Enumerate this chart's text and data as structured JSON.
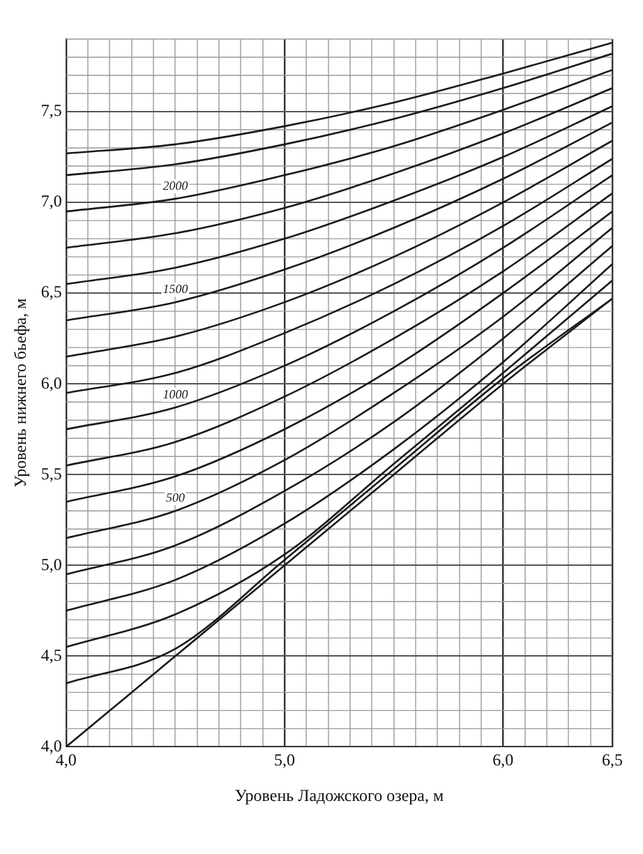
{
  "chart_data": {
    "type": "line",
    "xlabel": "Уровень Ладожского озера, м",
    "ylabel": "Уровень нижнего бьефа, м",
    "x": [
      4.0,
      4.5,
      5.0,
      5.5,
      6.0,
      6.5
    ],
    "xlim": [
      4.0,
      6.5
    ],
    "ylim": [
      4.0,
      7.9
    ],
    "xticks": [
      {
        "value": 4.0,
        "label": "4,0"
      },
      {
        "value": 4.1,
        "label": null
      },
      {
        "value": 4.2,
        "label": null
      },
      {
        "value": 4.3,
        "label": null
      },
      {
        "value": 4.4,
        "label": null
      },
      {
        "value": 4.5,
        "label": null
      },
      {
        "value": 4.6,
        "label": null
      },
      {
        "value": 4.7,
        "label": null
      },
      {
        "value": 4.8,
        "label": null
      },
      {
        "value": 4.9,
        "label": null
      },
      {
        "value": 5.0,
        "label": "5,0"
      },
      {
        "value": 5.1,
        "label": null
      },
      {
        "value": 5.2,
        "label": null
      },
      {
        "value": 5.3,
        "label": null
      },
      {
        "value": 5.4,
        "label": null
      },
      {
        "value": 5.5,
        "label": null
      },
      {
        "value": 5.6,
        "label": null
      },
      {
        "value": 5.7,
        "label": null
      },
      {
        "value": 5.8,
        "label": null
      },
      {
        "value": 5.9,
        "label": null
      },
      {
        "value": 6.0,
        "label": "6,0"
      },
      {
        "value": 6.1,
        "label": null
      },
      {
        "value": 6.2,
        "label": null
      },
      {
        "value": 6.3,
        "label": null
      },
      {
        "value": 6.4,
        "label": null
      },
      {
        "value": 6.5,
        "label": "6,5"
      }
    ],
    "yticks": [
      {
        "value": 4.0,
        "label": "4,0"
      },
      {
        "value": 4.5,
        "label": "4,5"
      },
      {
        "value": 5.0,
        "label": "5,0"
      },
      {
        "value": 5.5,
        "label": "5,5"
      },
      {
        "value": 6.0,
        "label": "6,0"
      },
      {
        "value": 6.5,
        "label": "6,5"
      },
      {
        "value": 7.0,
        "label": "7,0"
      },
      {
        "value": 7.5,
        "label": "7,5"
      }
    ],
    "grid": true,
    "legend": false,
    "marker": "none",
    "line_style": "solid",
    "series": [
      {
        "color": "#1a1a1a",
        "values": [
          4.0,
          4.5,
          5.0,
          5.5,
          6.0,
          6.47
        ]
      },
      {
        "color": "#1a1a1a",
        "values": [
          4.35,
          4.54,
          5.03,
          5.53,
          6.03,
          6.47
        ]
      },
      {
        "color": "#1a1a1a",
        "values": [
          4.55,
          4.73,
          5.06,
          5.56,
          6.06,
          6.57
        ]
      },
      {
        "color": "#1a1a1a",
        "values": [
          4.75,
          4.92,
          5.23,
          5.64,
          6.12,
          6.66
        ]
      },
      {
        "color": "#1a1a1a",
        "values": [
          4.95,
          5.11,
          5.41,
          5.79,
          6.25,
          6.76
        ]
      },
      {
        "name": "500",
        "color": "#1a1a1a",
        "values": [
          5.15,
          5.3,
          5.58,
          5.95,
          6.37,
          6.86
        ]
      },
      {
        "color": "#1a1a1a",
        "values": [
          5.35,
          5.49,
          5.75,
          6.09,
          6.5,
          6.95
        ]
      },
      {
        "color": "#1a1a1a",
        "values": [
          5.55,
          5.68,
          5.93,
          6.25,
          6.62,
          7.05
        ]
      },
      {
        "name": "1000",
        "color": "#1a1a1a",
        "values": [
          5.75,
          5.87,
          6.1,
          6.4,
          6.75,
          7.15
        ]
      },
      {
        "color": "#1a1a1a",
        "values": [
          5.95,
          6.06,
          6.28,
          6.55,
          6.87,
          7.24
        ]
      },
      {
        "color": "#1a1a1a",
        "values": [
          6.15,
          6.26,
          6.45,
          6.7,
          7.0,
          7.34
        ]
      },
      {
        "name": "1500",
        "color": "#1a1a1a",
        "values": [
          6.35,
          6.45,
          6.63,
          6.86,
          7.13,
          7.44
        ]
      },
      {
        "color": "#1a1a1a",
        "values": [
          6.55,
          6.64,
          6.8,
          7.01,
          7.25,
          7.53
        ]
      },
      {
        "color": "#1a1a1a",
        "values": [
          6.75,
          6.83,
          6.97,
          7.16,
          7.38,
          7.63
        ]
      },
      {
        "name": "2000",
        "color": "#1a1a1a",
        "values": [
          6.95,
          7.02,
          7.15,
          7.31,
          7.51,
          7.73
        ]
      },
      {
        "color": "#1a1a1a",
        "values": [
          7.15,
          7.21,
          7.32,
          7.46,
          7.63,
          7.82
        ]
      },
      {
        "color": "#1a1a1a",
        "values": [
          7.27,
          7.32,
          7.42,
          7.55,
          7.71,
          7.88
        ]
      }
    ]
  }
}
